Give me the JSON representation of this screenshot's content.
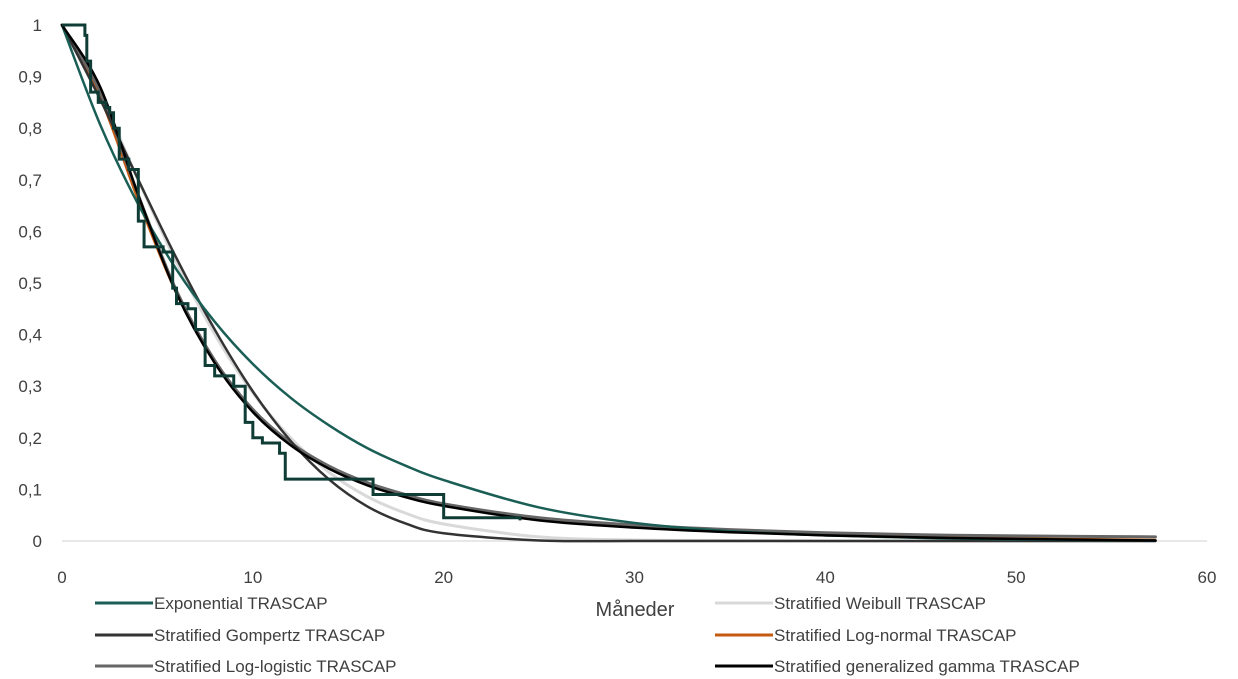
{
  "chart_data": {
    "type": "line",
    "title": "",
    "xlabel": "Måneder",
    "ylabel": "",
    "xlim": [
      0,
      60
    ],
    "ylim": [
      0,
      1
    ],
    "x_ticks": [
      "0",
      "10",
      "20",
      "30",
      "40",
      "50",
      "60"
    ],
    "y_ticks": [
      "0",
      "0,1",
      "0,2",
      "0,3",
      "0,4",
      "0,5",
      "0,6",
      "0,7",
      "0,8",
      "0,9",
      "1"
    ],
    "grid": false,
    "legend_position": "bottom",
    "x": [
      0,
      2,
      4,
      6,
      8,
      10,
      12,
      14,
      16,
      18,
      20,
      25,
      30,
      35,
      40,
      45,
      50,
      57.3
    ],
    "series": [
      {
        "name": "Exponential TRASCAP",
        "color": "#1a5e55",
        "values": [
          1,
          0.807,
          0.652,
          0.526,
          0.425,
          0.343,
          0.277,
          0.224,
          0.18,
          0.146,
          0.118,
          0.065,
          0.035,
          0.019,
          0.011,
          0.006,
          0.003,
          0.001
        ]
      },
      {
        "name": "Stratified Weibull TRASCAP",
        "color": "#d9d9d9",
        "values": [
          1,
          0.865,
          0.699,
          0.54,
          0.401,
          0.287,
          0.199,
          0.133,
          0.086,
          0.054,
          0.033,
          0.008,
          0.002,
          0.001,
          0.0,
          0.0,
          0.0,
          0.0
        ]
      },
      {
        "name": "Stratified Gompertz TRASCAP",
        "color": "#333333",
        "values": [
          1,
          0.856,
          0.7,
          0.548,
          0.41,
          0.29,
          0.193,
          0.119,
          0.067,
          0.034,
          0.015,
          0.001,
          0.0,
          0.0,
          0.0,
          0.0,
          0.0,
          0.0
        ]
      },
      {
        "name": "Stratified Log-normal TRASCAP",
        "color": "#c55a11",
        "values": [
          1,
          0.86,
          0.66,
          0.48,
          0.35,
          0.255,
          0.19,
          0.145,
          0.112,
          0.088,
          0.07,
          0.042,
          0.027,
          0.018,
          0.012,
          0.008,
          0.005,
          0.002
        ]
      },
      {
        "name": "Stratified Log-logistic TRASCAP",
        "color": "#666666",
        "values": [
          1,
          0.87,
          0.67,
          0.485,
          0.35,
          0.255,
          0.19,
          0.145,
          0.113,
          0.09,
          0.072,
          0.045,
          0.031,
          0.022,
          0.016,
          0.012,
          0.01,
          0.008
        ]
      },
      {
        "name": "Stratified generalized gamma TRASCAP",
        "color": "#000000",
        "values": [
          1,
          0.88,
          0.67,
          0.48,
          0.345,
          0.25,
          0.185,
          0.14,
          0.108,
          0.085,
          0.068,
          0.04,
          0.026,
          0.017,
          0.011,
          0.007,
          0.004,
          0.001
        ]
      }
    ],
    "km_step": {
      "color": "#0f3d36",
      "points": [
        [
          0,
          1
        ],
        [
          1.2,
          1
        ],
        [
          1.2,
          0.98
        ],
        [
          1.3,
          0.98
        ],
        [
          1.3,
          0.93
        ],
        [
          1.5,
          0.93
        ],
        [
          1.5,
          0.87
        ],
        [
          1.9,
          0.87
        ],
        [
          1.9,
          0.85
        ],
        [
          2.3,
          0.85
        ],
        [
          2.3,
          0.84
        ],
        [
          2.5,
          0.84
        ],
        [
          2.5,
          0.83
        ],
        [
          2.7,
          0.83
        ],
        [
          2.7,
          0.8
        ],
        [
          3.0,
          0.8
        ],
        [
          3.0,
          0.74
        ],
        [
          3.5,
          0.74
        ],
        [
          3.5,
          0.72
        ],
        [
          4.0,
          0.72
        ],
        [
          4.0,
          0.62
        ],
        [
          4.3,
          0.62
        ],
        [
          4.3,
          0.57
        ],
        [
          5.3,
          0.57
        ],
        [
          5.3,
          0.56
        ],
        [
          5.8,
          0.56
        ],
        [
          5.8,
          0.49
        ],
        [
          6.0,
          0.49
        ],
        [
          6.0,
          0.46
        ],
        [
          6.6,
          0.46
        ],
        [
          6.6,
          0.45
        ],
        [
          7.0,
          0.45
        ],
        [
          7.0,
          0.41
        ],
        [
          7.5,
          0.41
        ],
        [
          7.5,
          0.34
        ],
        [
          8.0,
          0.34
        ],
        [
          8.0,
          0.32
        ],
        [
          9.0,
          0.32
        ],
        [
          9.0,
          0.3
        ],
        [
          9.6,
          0.3
        ],
        [
          9.6,
          0.23
        ],
        [
          10.0,
          0.23
        ],
        [
          10.0,
          0.2
        ],
        [
          10.5,
          0.2
        ],
        [
          10.5,
          0.19
        ],
        [
          11.4,
          0.19
        ],
        [
          11.4,
          0.17
        ],
        [
          11.7,
          0.17
        ],
        [
          11.7,
          0.12
        ],
        [
          16.3,
          0.12
        ],
        [
          16.3,
          0.09
        ],
        [
          20.0,
          0.09
        ],
        [
          20.0,
          0.045
        ],
        [
          24.0,
          0.045
        ],
        [
          24.0,
          0.04
        ]
      ]
    }
  }
}
